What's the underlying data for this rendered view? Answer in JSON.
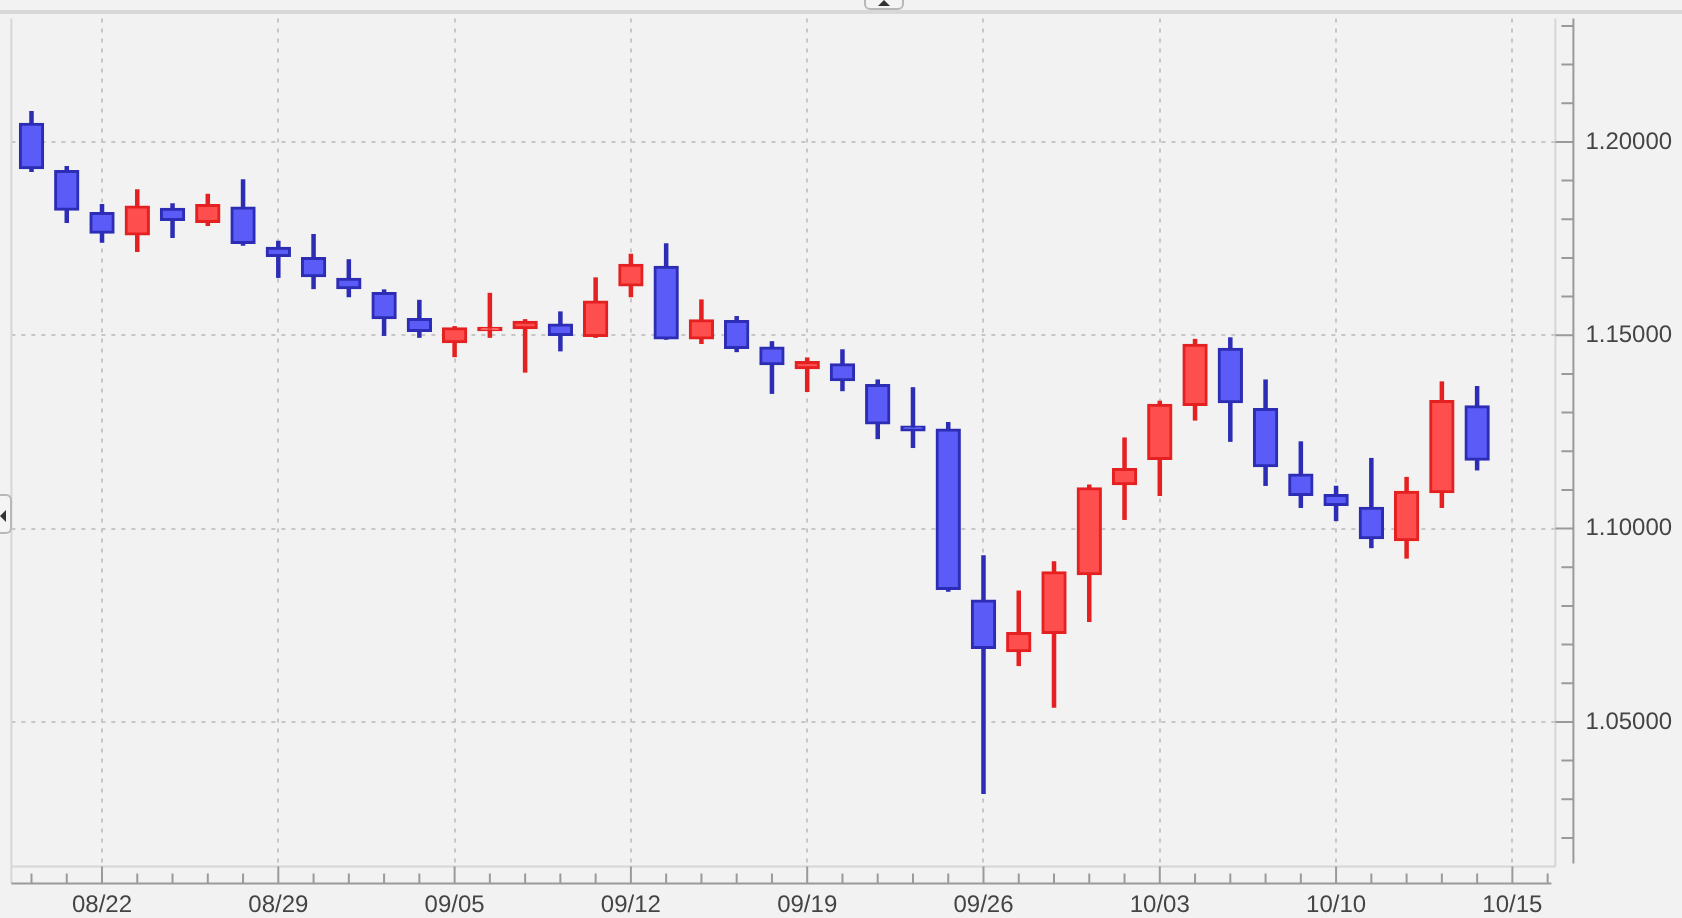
{
  "chart_data": {
    "type": "candlestick",
    "categories": [
      null,
      null,
      "08/22",
      null,
      null,
      null,
      null,
      "08/29",
      null,
      null,
      null,
      null,
      "09/05",
      null,
      null,
      null,
      null,
      "09/12",
      null,
      null,
      null,
      null,
      "09/19",
      null,
      null,
      null,
      null,
      "09/26",
      null,
      null,
      null,
      null,
      "10/03",
      null,
      null,
      null,
      null,
      "10/10",
      null,
      null,
      null,
      null,
      "10/15",
      null
    ],
    "ohlc": [
      [
        1.2048,
        1.2078,
        1.1924,
        1.1931
      ],
      [
        1.1926,
        1.1936,
        1.1792,
        1.1824
      ],
      [
        1.1817,
        1.1838,
        1.1741,
        1.1764
      ],
      [
        1.176,
        1.1876,
        1.1717,
        1.1834
      ],
      [
        1.1828,
        1.184,
        1.1753,
        1.1797
      ],
      [
        1.1792,
        1.1864,
        1.1784,
        1.1838
      ],
      [
        1.1831,
        1.1902,
        1.1733,
        1.1738
      ],
      [
        1.1727,
        1.1743,
        1.165,
        1.1704
      ],
      [
        1.1701,
        1.176,
        1.1621,
        1.1652
      ],
      [
        1.1647,
        1.1695,
        1.16,
        1.1621
      ],
      [
        1.161,
        1.1617,
        1.15,
        1.1543
      ],
      [
        1.1543,
        1.159,
        1.1495,
        1.151
      ],
      [
        1.1481,
        1.1522,
        1.1445,
        1.1519
      ],
      [
        1.1512,
        1.1608,
        1.1495,
        1.152
      ],
      [
        1.1517,
        1.154,
        1.1405,
        1.1536
      ],
      [
        1.1529,
        1.156,
        1.146,
        1.15
      ],
      [
        1.1497,
        1.1648,
        1.1495,
        1.1588
      ],
      [
        1.1628,
        1.1709,
        1.16,
        1.1683
      ],
      [
        1.1678,
        1.1736,
        1.149,
        1.1491
      ],
      [
        1.1491,
        1.1591,
        1.1479,
        1.154
      ],
      [
        1.1538,
        1.1548,
        1.1458,
        1.1466
      ],
      [
        1.1469,
        1.1483,
        1.135,
        1.1424
      ],
      [
        1.1414,
        1.1441,
        1.1355,
        1.1432
      ],
      [
        1.1426,
        1.1462,
        1.1357,
        1.1383
      ],
      [
        1.1372,
        1.1384,
        1.1233,
        1.1271
      ],
      [
        1.1265,
        1.1364,
        1.121,
        1.1253
      ],
      [
        1.1257,
        1.1274,
        1.0838,
        1.0843
      ],
      [
        1.0815,
        1.0929,
        1.0315,
        1.069
      ],
      [
        1.0682,
        1.0838,
        1.0646,
        1.0731
      ],
      [
        1.0729,
        1.0914,
        1.0538,
        1.0888
      ],
      [
        1.0881,
        1.1112,
        1.076,
        1.1105
      ],
      [
        1.1114,
        1.1234,
        1.1024,
        1.1155
      ],
      [
        1.1179,
        1.1329,
        1.1086,
        1.1321
      ],
      [
        1.1319,
        1.1489,
        1.1281,
        1.1476
      ],
      [
        1.1466,
        1.1493,
        1.1226,
        1.1326
      ],
      [
        1.131,
        1.1384,
        1.1112,
        1.116
      ],
      [
        1.1141,
        1.1224,
        1.1055,
        1.1086
      ],
      [
        1.1088,
        1.1109,
        1.1021,
        1.106
      ],
      [
        1.1055,
        1.1181,
        1.0951,
        1.0974
      ],
      [
        1.0969,
        1.1132,
        1.0924,
        1.1096
      ],
      [
        1.1093,
        1.1379,
        1.1055,
        1.1331
      ],
      [
        1.1317,
        1.1367,
        1.1152,
        1.1177
      ],
      null,
      null
    ],
    "colors": [
      "#2c2cb4",
      "#2c2cb4",
      "#2c2cb4",
      "#e42020",
      "#2c2cb4",
      "#e42020",
      "#2c2cb4",
      "#2c2cb4",
      "#2c2cb4",
      "#2c2cb4",
      "#2c2cb4",
      "#2c2cb4",
      "#e42020",
      "#e42020",
      "#e42020",
      "#2c2cb4",
      "#e42020",
      "#e42020",
      "#2c2cb4",
      "#e42020",
      "#2c2cb4",
      "#2c2cb4",
      "#e42020",
      "#2c2cb4",
      "#2c2cb4",
      "#2c2cb4",
      "#2c2cb4",
      "#2c2cb4",
      "#e42020",
      "#e42020",
      "#e42020",
      "#e42020",
      "#e42020",
      "#e42020",
      "#2c2cb4",
      "#2c2cb4",
      "#2c2cb4",
      "#2c2cb4",
      "#2c2cb4",
      "#e42020",
      "#e42020",
      "#2c2cb4",
      null,
      null
    ],
    "ylim": [
      1.0134,
      1.2319
    ],
    "yticks": [
      {
        "value": 1.02,
        "label": null
      },
      {
        "value": 1.03,
        "label": null
      },
      {
        "value": 1.04,
        "label": null
      },
      {
        "value": 1.05,
        "label": "1.05000"
      },
      {
        "value": 1.06,
        "label": null
      },
      {
        "value": 1.07,
        "label": null
      },
      {
        "value": 1.08,
        "label": null
      },
      {
        "value": 1.09,
        "label": null
      },
      {
        "value": 1.1,
        "label": "1.10000"
      },
      {
        "value": 1.11,
        "label": null
      },
      {
        "value": 1.12,
        "label": null
      },
      {
        "value": 1.13,
        "label": null
      },
      {
        "value": 1.14,
        "label": null
      },
      {
        "value": 1.15,
        "label": "1.15000"
      },
      {
        "value": 1.16,
        "label": null
      },
      {
        "value": 1.17,
        "label": null
      },
      {
        "value": 1.18,
        "label": null
      },
      {
        "value": 1.19,
        "label": null
      },
      {
        "value": 1.2,
        "label": "1.20000"
      },
      {
        "value": 1.21,
        "label": null
      },
      {
        "value": 1.22,
        "label": null
      },
      {
        "value": 1.23,
        "label": null
      }
    ],
    "grid": true
  }
}
